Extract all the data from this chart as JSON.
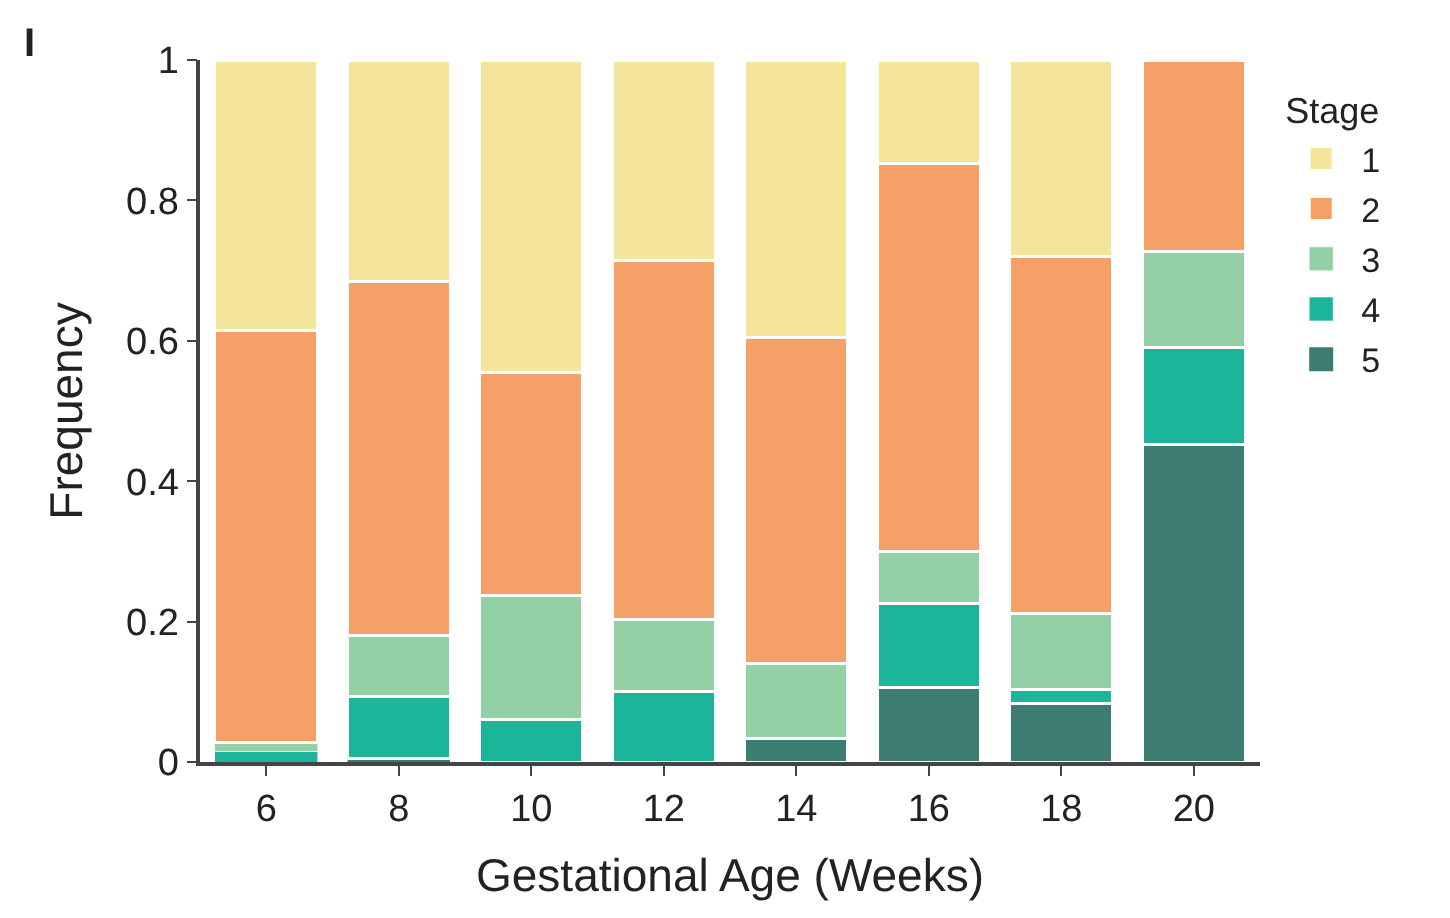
{
  "chart_data": {
    "type": "bar",
    "stacked": true,
    "xlabel": "Gestational Age (Weeks)",
    "ylabel": "Frequency",
    "legend_title": "Stage",
    "legend": "right",
    "annotations": [
      "I"
    ],
    "categories": [
      "6",
      "8",
      "10",
      "12",
      "14",
      "16",
      "18",
      "20"
    ],
    "ylim": [
      0,
      1
    ],
    "yticks": [
      0,
      0.2,
      0.4,
      0.6,
      0.8,
      1
    ],
    "series": [
      {
        "name": "5",
        "color": "#3d7c70",
        "values": [
          0,
          0.005,
          0,
          0,
          0.033,
          0.106,
          0.083,
          0.453
        ]
      },
      {
        "name": "4",
        "color": "#1cb59a",
        "values": [
          0.015,
          0.089,
          0.06,
          0.1,
          0,
          0.12,
          0.02,
          0.137
        ]
      },
      {
        "name": "3",
        "color": "#93d0a5",
        "values": [
          0.013,
          0.086,
          0.177,
          0.103,
          0.107,
          0.074,
          0.108,
          0.137
        ]
      },
      {
        "name": "2",
        "color": "#f5a067",
        "values": [
          0.587,
          0.505,
          0.318,
          0.512,
          0.465,
          0.553,
          0.509,
          0.273
        ]
      },
      {
        "name": "1",
        "color": "#f5e59a",
        "values": [
          0.385,
          0.315,
          0.445,
          0.285,
          0.395,
          0.147,
          0.28,
          0
        ]
      }
    ]
  }
}
